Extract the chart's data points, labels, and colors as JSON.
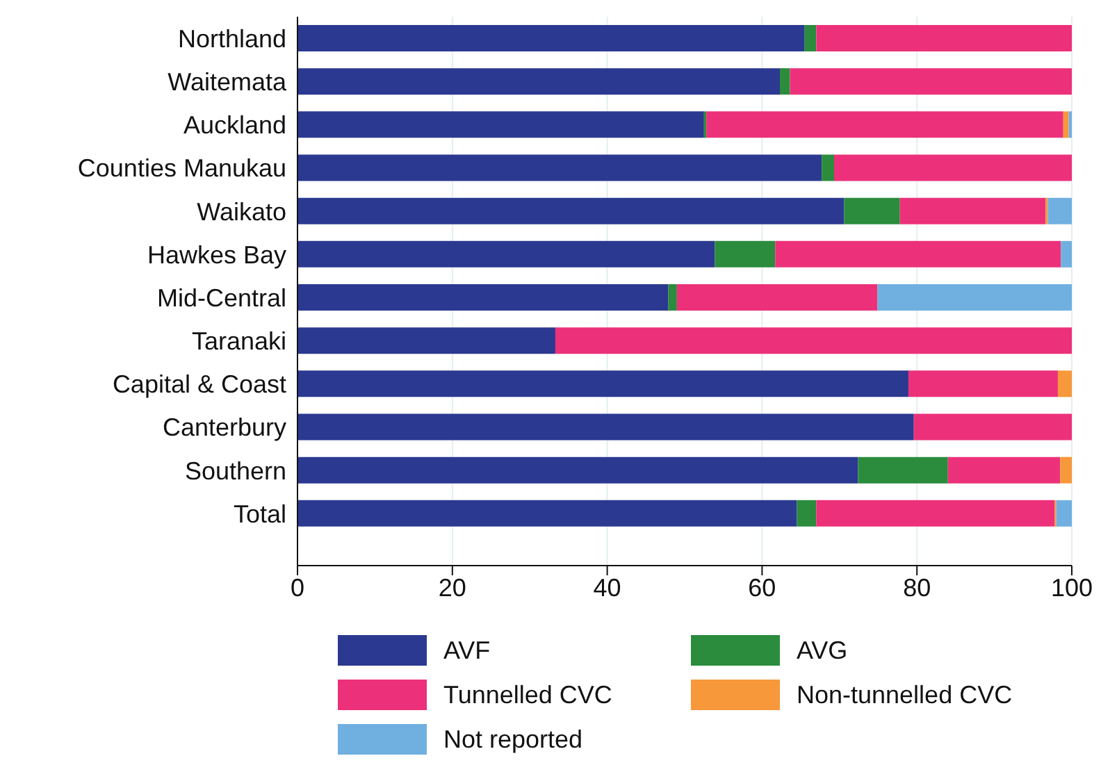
{
  "chart_data": {
    "type": "bar",
    "orientation": "horizontal",
    "stacked": true,
    "categories": [
      "Northland",
      "Waitemata",
      "Auckland",
      "Counties Manukau",
      "Waikato",
      "Hawkes Bay",
      "Mid-Central",
      "Taranaki",
      "Capital & Coast",
      "Canterbury",
      "Southern",
      "Total"
    ],
    "series": [
      {
        "name": "AVF",
        "color": "#2b3990",
        "values": [
          65.5,
          62.3,
          52.5,
          67.7,
          70.6,
          53.9,
          47.9,
          33.3,
          78.9,
          79.6,
          72.4,
          64.5
        ]
      },
      {
        "name": "AVG",
        "color": "#2a8c3c",
        "values": [
          1.5,
          1.3,
          0.3,
          1.6,
          7.2,
          7.8,
          1.1,
          0,
          0,
          0,
          11.6,
          2.5
        ]
      },
      {
        "name": "Tunnelled CVC",
        "color": "#ec317a",
        "values": [
          33.0,
          36.4,
          46.1,
          30.7,
          18.8,
          36.9,
          25.9,
          66.7,
          19.3,
          20.4,
          14.5,
          30.8
        ]
      },
      {
        "name": "Non-tunnelled CVC",
        "color": "#f7983a",
        "values": [
          0,
          0,
          0.7,
          0,
          0.3,
          0,
          0,
          0,
          1.8,
          0,
          1.5,
          0.2
        ]
      },
      {
        "name": "Not reported",
        "color": "#6fb0e0",
        "values": [
          0,
          0,
          0.4,
          0,
          3.1,
          1.4,
          25.1,
          0,
          0,
          0,
          0,
          2.0
        ]
      }
    ],
    "xlim": [
      0,
      100
    ],
    "xticks": [
      0,
      20,
      40,
      60,
      80,
      100
    ],
    "grid": "x",
    "legend": "bottom"
  }
}
